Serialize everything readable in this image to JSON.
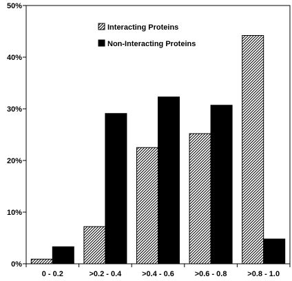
{
  "chart_data": {
    "type": "bar",
    "categories": [
      "0 - 0.2",
      ">0.2 - 0.4",
      ">0.4 - 0.6",
      ">0.6 - 0.8",
      ">0.8 - 1.0"
    ],
    "series": [
      {
        "name": "Interacting Proteins",
        "values": [
          0.9,
          7.2,
          22.5,
          25.2,
          44.2
        ],
        "color": "#ffffff",
        "pattern": "diagonal-hatch"
      },
      {
        "name": "Non-Interacting Proteins",
        "values": [
          3.3,
          29.1,
          32.3,
          30.7,
          4.8
        ],
        "color": "#000000",
        "pattern": "solid"
      }
    ],
    "yticks": [
      "0%",
      "10%",
      "20%",
      "30%",
      "40%",
      "50%"
    ],
    "ylim": [
      0,
      50
    ],
    "unit": "%",
    "grid": false,
    "legend_position": "top-center",
    "title": "",
    "xlabel": "",
    "ylabel": ""
  }
}
